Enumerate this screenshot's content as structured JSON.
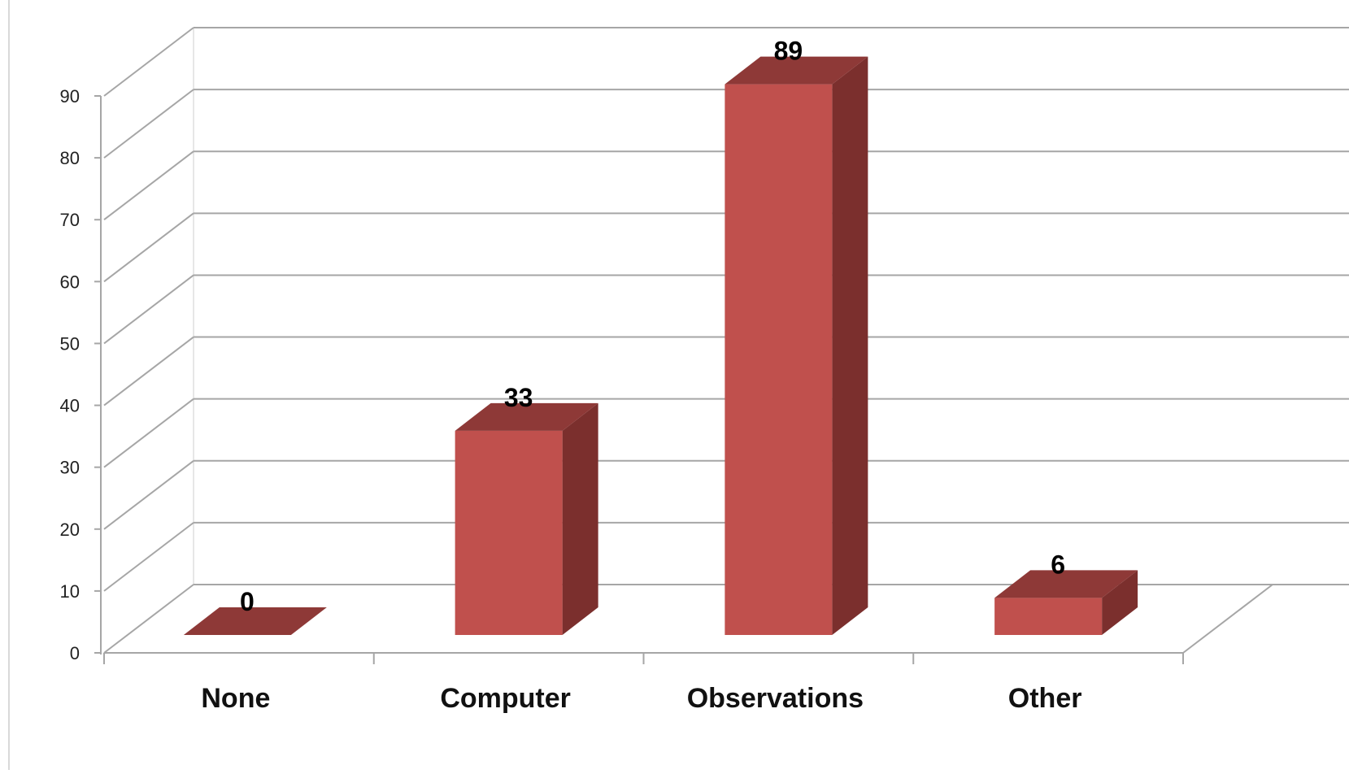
{
  "chart_data": {
    "type": "bar",
    "title": "",
    "xlabel": "",
    "ylabel": "",
    "categories": [
      "None",
      "Computer",
      "Observations",
      "Other"
    ],
    "values": [
      0,
      33,
      89,
      6
    ],
    "data_labels": [
      "0",
      "33",
      "89",
      "6"
    ],
    "ylim": [
      0,
      90
    ],
    "yticks": [
      "0",
      "10",
      "20",
      "30",
      "40",
      "50",
      "60",
      "70",
      "80",
      "90"
    ],
    "grid": true,
    "legend": "none",
    "style": "3d-column",
    "colors": {
      "bar_front": "#c0504d",
      "bar_side": "#7b2f2d",
      "bar_top": "#8e3937",
      "grid": "#a6a6a6"
    }
  }
}
